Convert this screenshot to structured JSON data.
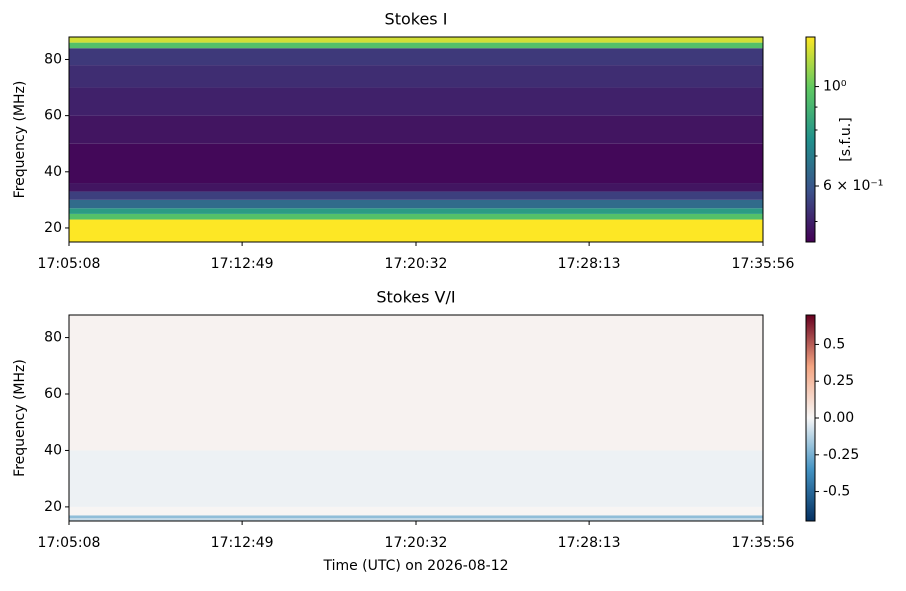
{
  "chart_data": [
    {
      "type": "heatmap",
      "title": "Stokes I",
      "ylabel": "Frequency (MHz)",
      "colormap": "viridis",
      "log": true,
      "xlim": [
        "17:05:08",
        "17:35:56"
      ],
      "xticks": [
        "17:05:08",
        "17:12:49",
        "17:20:32",
        "17:28:13",
        "17:35:56"
      ],
      "ylim": [
        15,
        88
      ],
      "yticks": [
        20,
        40,
        60,
        80
      ],
      "y_edges": [
        15,
        23,
        25,
        27,
        30,
        33,
        36,
        50,
        60,
        70,
        78,
        84,
        86,
        88
      ],
      "values": [
        1.3,
        0.95,
        0.8,
        0.65,
        0.55,
        0.48,
        0.46,
        0.48,
        0.5,
        0.52,
        0.54,
        0.95,
        1.2
      ],
      "clim": [
        0.45,
        1.29
      ],
      "clabel": "[s.f.u.]",
      "cticks": [
        {
          "value": 1,
          "label": "10⁰"
        },
        {
          "value": 0.6,
          "label": "6 × 10⁻¹"
        }
      ],
      "cminor": [
        0.5,
        0.7,
        0.8,
        0.9
      ]
    },
    {
      "type": "heatmap",
      "title": "Stokes V/I",
      "ylabel": "Frequency (MHz)",
      "xlabel": "Time (UTC) on 2026-08-12",
      "colormap": "RdBu_r",
      "log": false,
      "xlim": [
        "17:05:08",
        "17:35:56"
      ],
      "xticks": [
        "17:05:08",
        "17:12:49",
        "17:20:32",
        "17:28:13",
        "17:35:56"
      ],
      "ylim": [
        15,
        88
      ],
      "yticks": [
        20,
        40,
        60,
        80
      ],
      "y_edges": [
        15,
        16,
        17,
        20,
        40,
        88
      ],
      "values": [
        -0.1,
        -0.2,
        0.01,
        -0.02,
        0.02
      ],
      "clim": [
        -0.7,
        0.7
      ],
      "cticks": [
        -0.5,
        -0.25,
        {
          "value": 0,
          "label": "0.00"
        },
        0.25,
        0.5
      ]
    }
  ]
}
